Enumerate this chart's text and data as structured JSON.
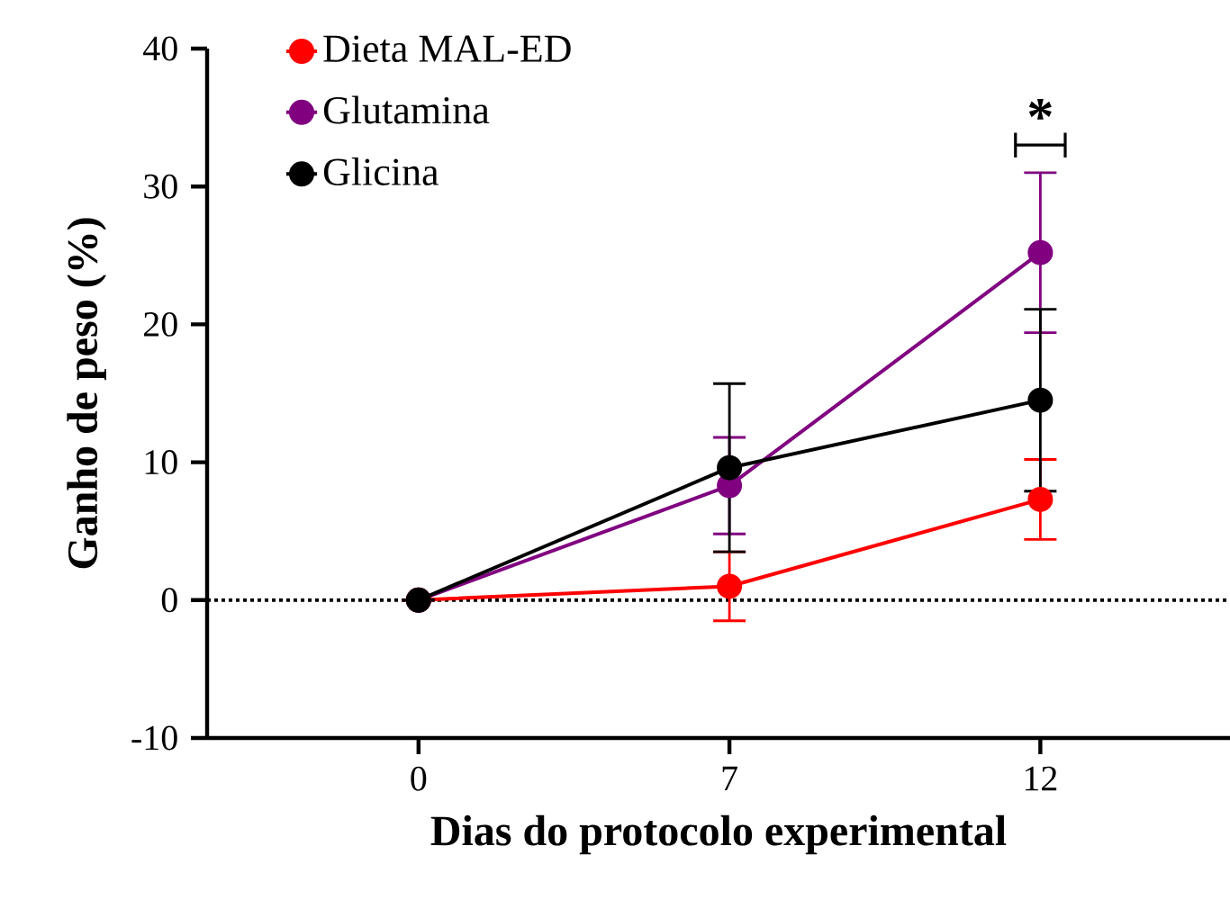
{
  "chart_data": {
    "type": "line",
    "xlabel": "Dias do protocolo experimental",
    "ylabel": "Ganho de peso (%)",
    "categories": [
      "0",
      "7",
      "12"
    ],
    "series": [
      {
        "name": "Dieta MAL-ED",
        "color": "#ff0000",
        "values": [
          0,
          1.0,
          7.3
        ],
        "errors": [
          null,
          2.5,
          2.9
        ]
      },
      {
        "name": "Glutamina",
        "color": "#800080",
        "values": [
          0,
          8.3,
          25.2
        ],
        "errors": [
          null,
          3.5,
          5.8
        ]
      },
      {
        "name": "Glicina",
        "color": "#000000",
        "values": [
          0,
          9.6,
          14.5
        ],
        "errors": [
          null,
          6.1,
          6.6
        ]
      }
    ],
    "ylim": [
      -10,
      40
    ],
    "yticks": [
      -10,
      0,
      10,
      20,
      30,
      40
    ],
    "ref_lines": [
      {
        "axis": "y",
        "value": 0,
        "line_style": "dotted",
        "color": "#000000"
      }
    ],
    "annotations": [
      "*"
    ],
    "grid": false,
    "legend": "top left",
    "marker": "circle",
    "line_style": "solid"
  }
}
